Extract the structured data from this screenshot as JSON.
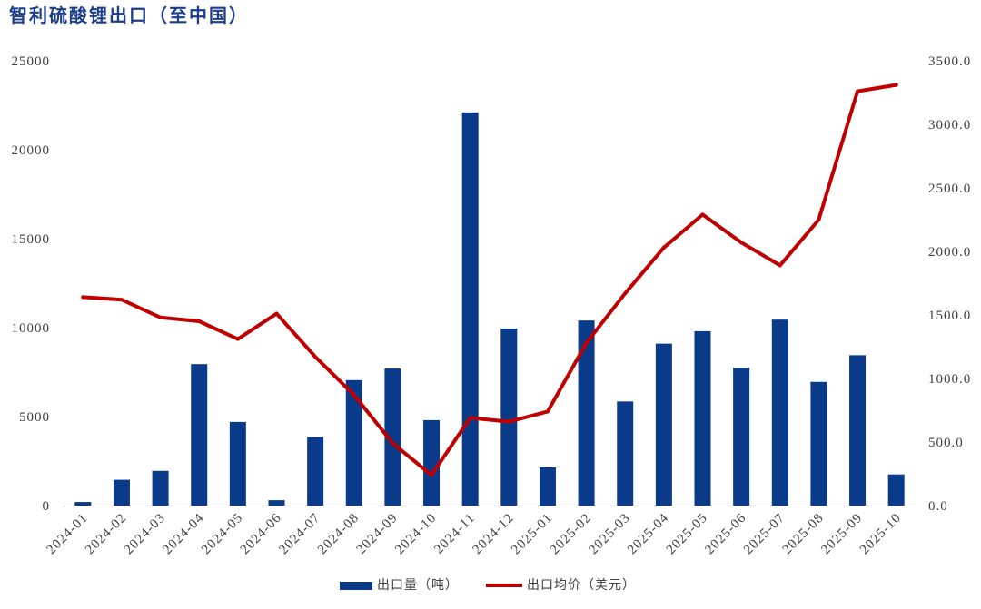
{
  "colors": {
    "title": "#1d3e8a",
    "bar": "#0a3a8a",
    "line": "#c00000",
    "tick_text": "#404040",
    "axis_line": "#d9d9d9"
  },
  "chart_data": {
    "type": "bar",
    "title": "智利硫酸锂出口（至中国）",
    "categories": [
      "2024-01",
      "2024-02",
      "2024-03",
      "2024-04",
      "2024-05",
      "2024-06",
      "2024-07",
      "2024-08",
      "2024-09",
      "2024-10",
      "2024-11",
      "2024-12",
      "2025-01",
      "2025-02",
      "2025-03",
      "2025-04",
      "2025-05",
      "2025-06",
      "2025-07",
      "2025-08",
      "2025-09",
      "2025-10"
    ],
    "series": [
      {
        "name": "出口量（吨）",
        "type": "bar",
        "axis": "left",
        "values": [
          200,
          1450,
          1950,
          7950,
          4700,
          300,
          3850,
          7050,
          7700,
          4800,
          22100,
          9950,
          2150,
          10400,
          5850,
          9100,
          9800,
          7750,
          10450,
          6950,
          8450,
          1750
        ]
      },
      {
        "name": "出口均价（美元）",
        "type": "line",
        "axis": "right",
        "values": [
          1640,
          1620,
          1480,
          1450,
          1310,
          1510,
          1170,
          870,
          490,
          240,
          690,
          660,
          740,
          1280,
          1670,
          2030,
          2290,
          2070,
          1890,
          2250,
          3260,
          3310
        ]
      }
    ],
    "y_left": {
      "range": [
        0,
        25000
      ],
      "ticks": [
        "0",
        "5000",
        "10000",
        "15000",
        "20000",
        "25000"
      ]
    },
    "y_right": {
      "range": [
        0,
        3500
      ],
      "ticks": [
        "0.0",
        "500.0",
        "1000.0",
        "1500.0",
        "2000.0",
        "2500.0",
        "3000.0",
        "3500.0"
      ]
    },
    "grid": false,
    "legend": "bottom"
  }
}
